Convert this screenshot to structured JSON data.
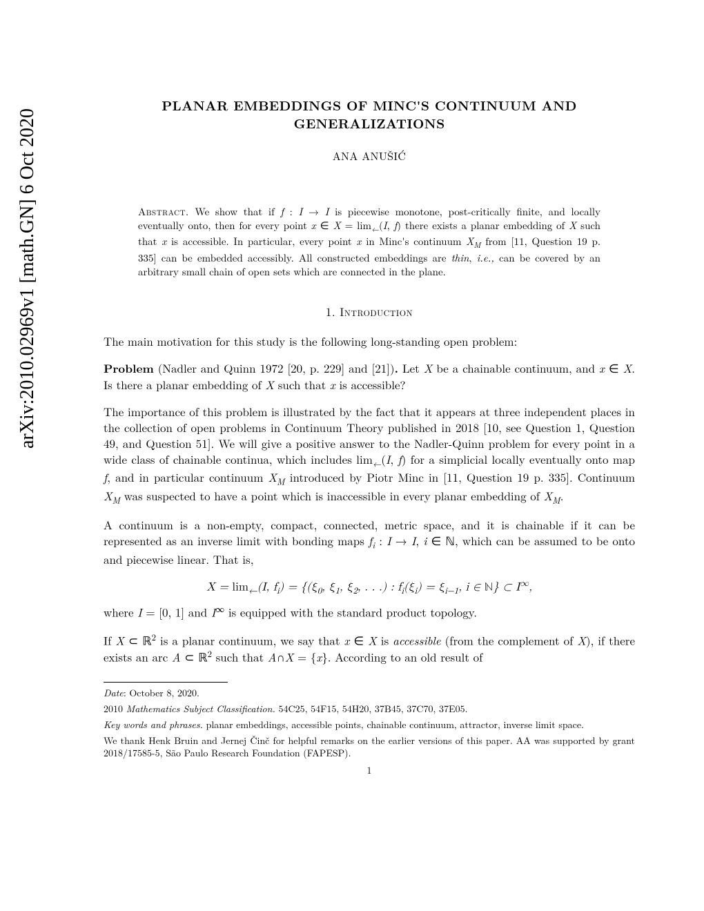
{
  "arxiv": {
    "identifier": "arXiv:2010.02969v1  [math.GN]  6 Oct 2020"
  },
  "title": "PLANAR EMBEDDINGS OF MINC'S CONTINUUM AND GENERALIZATIONS",
  "author": "ANA ANUŠIĆ",
  "abstract": {
    "label": "Abstract.",
    "text": "We show that if f : I → I is piecewise monotone, post-critically finite, and locally eventually onto, then for every point x ∈ X = lim←(I, f) there exists a planar embedding of X such that x is accessible. In particular, every point x in Minc's continuum X_M from [11, Question 19 p. 335] can be embedded accessibly. All constructed embeddings are thin, i.e., can be covered by an arbitrary small chain of open sets which are connected in the plane."
  },
  "section": {
    "number": "1.",
    "title": "Introduction"
  },
  "body": {
    "p1": "The main motivation for this study is the following long-standing open problem:",
    "problem_label": "Problem",
    "problem_citation": "(Nadler and Quinn 1972 [20, p. 229] and [21]).",
    "problem_text": "Let X be a chainable continuum, and x ∈ X. Is there a planar embedding of X such that x is accessible?",
    "p2": "The importance of this problem is illustrated by the fact that it appears at three independent places in the collection of open problems in Continuum Theory published in 2018 [10, see Question 1, Question 49, and Question 51]. We will give a positive answer to the Nadler-Quinn problem for every point in a wide class of chainable continua, which includes lim←(I, f) for a simplicial locally eventually onto map f, and in particular continuum X_M introduced by Piotr Minc in [11, Question 19 p. 335]. Continuum X_M was suspected to have a point which is inaccessible in every planar embedding of X_M.",
    "p3": "A continuum is a non-empty, compact, connected, metric space, and it is chainable if it can be represented as an inverse limit with bonding maps fᵢ : I → I, i ∈ ℕ, which can be assumed to be onto and piecewise linear. That is,",
    "math1": "X = lim←(I, fᵢ) = {(ξ₀, ξ₁, ξ₂, . . .) : fᵢ(ξᵢ) = ξᵢ₋₁, i ∈ ℕ} ⊂ I^∞,",
    "p4": "where I = [0, 1] and I^∞ is equipped with the standard product topology.",
    "p5": "If X ⊂ ℝ² is a planar continuum, we say that x ∈ X is accessible (from the complement of X), if there exists an arc A ⊂ ℝ² such that A∩X = {x}. According to an old result of"
  },
  "footnotes": {
    "date_label": "Date",
    "date_value": ": October 8, 2020.",
    "msc_label": "2010 Mathematics Subject Classification.",
    "msc_value": "54C25, 54F15, 54H20, 37B45, 37C70, 37E05.",
    "keywords_label": "Key words and phrases.",
    "keywords_value": "planar embeddings, accessible points, chainable continuum, attractor, inverse limit space.",
    "thanks": "We thank Henk Bruin and Jernej Činč for helpful remarks on the earlier versions of this paper. AA was supported by grant 2018/17585-5, São Paulo Research Foundation (FAPESP)."
  },
  "page_number": "1"
}
